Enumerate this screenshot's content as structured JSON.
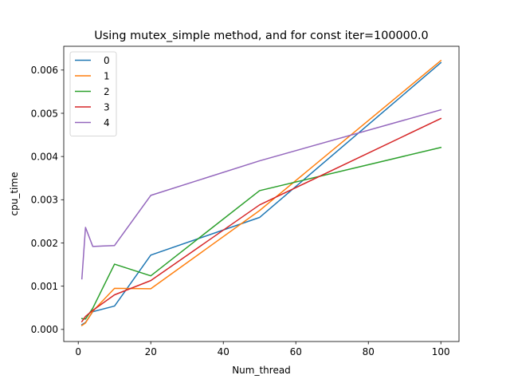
{
  "chart_data": {
    "type": "line",
    "title": "Using mutex_simple method, and for const iter=100000.0",
    "xlabel": "Num_thread",
    "ylabel": "cpu_time",
    "xlim": [
      -4.0,
      105.0
    ],
    "ylim": [
      -0.00028,
      0.00655
    ],
    "xticks": [
      0,
      20,
      40,
      60,
      80,
      100
    ],
    "xtick_labels": [
      "0",
      "20",
      "40",
      "60",
      "80",
      "100"
    ],
    "yticks": [
      0.0,
      0.001,
      0.002,
      0.003,
      0.004,
      0.005,
      0.006
    ],
    "ytick_labels": [
      "0.000",
      "0.001",
      "0.002",
      "0.003",
      "0.004",
      "0.005",
      "0.006"
    ],
    "grid": false,
    "legend_position": "top-left",
    "x": [
      1,
      2,
      4,
      10,
      20,
      50,
      100
    ],
    "series": [
      {
        "name": "0",
        "color": "#1f77b4",
        "values": [
          0.00011,
          0.00016,
          0.00041,
          0.00054,
          0.00172,
          0.00259,
          0.00617
        ]
      },
      {
        "name": "1",
        "color": "#ff7f0e",
        "values": [
          9e-05,
          0.00015,
          0.00042,
          0.00095,
          0.00094,
          0.00275,
          0.00622
        ]
      },
      {
        "name": "2",
        "color": "#2ca02c",
        "values": [
          0.00025,
          0.00024,
          0.00049,
          0.00151,
          0.00124,
          0.00321,
          0.00421
        ]
      },
      {
        "name": "3",
        "color": "#d62728",
        "values": [
          0.00018,
          0.0003,
          0.00044,
          0.0008,
          0.00113,
          0.00288,
          0.00488
        ]
      },
      {
        "name": "4",
        "color": "#9467bd",
        "values": [
          0.00117,
          0.00236,
          0.00192,
          0.00194,
          0.0031,
          0.0039,
          0.00508
        ]
      }
    ]
  }
}
